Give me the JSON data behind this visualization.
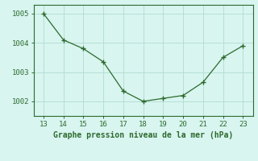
{
  "x": [
    13,
    14,
    15,
    16,
    17,
    18,
    19,
    20,
    21,
    22,
    23
  ],
  "y": [
    1005.0,
    1004.1,
    1003.8,
    1003.35,
    1002.35,
    1002.0,
    1002.1,
    1002.2,
    1002.65,
    1003.5,
    1003.9
  ],
  "xlabel": "Graphe pression niveau de la mer (hPa)",
  "xlim": [
    12.5,
    23.5
  ],
  "ylim": [
    1001.5,
    1005.3
  ],
  "yticks": [
    1002,
    1003,
    1004,
    1005
  ],
  "xticks": [
    13,
    14,
    15,
    16,
    17,
    18,
    19,
    20,
    21,
    22,
    23
  ],
  "line_color": "#2d6a2d",
  "marker": "+",
  "bg_color": "#d8f5f0",
  "grid_color": "#b0ddd0",
  "xlabel_color": "#2d6a2d",
  "xlabel_fontsize": 7.0,
  "tick_fontsize": 6.5,
  "tick_color": "#2d6a2d",
  "spine_color": "#2d6a2d"
}
